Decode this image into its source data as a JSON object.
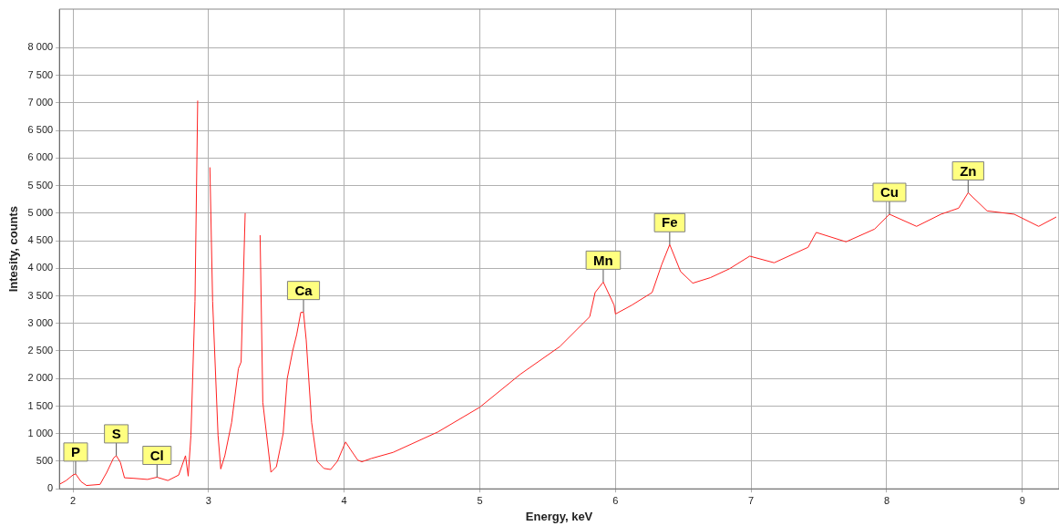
{
  "chart_data": {
    "type": "line",
    "xlabel": "Energy, keV",
    "ylabel": "Intesity, counts",
    "xlim": [
      1.9,
      9.27
    ],
    "xticks": [
      2,
      3,
      4,
      5,
      6,
      7,
      8,
      9
    ],
    "ylim": [
      0,
      8700
    ],
    "yticks": [
      0,
      500,
      {
        "value": 1000,
        "label": "1 000"
      },
      {
        "value": 1500,
        "label": "1 500"
      },
      {
        "value": 2000,
        "label": "2 000"
      },
      {
        "value": 2500,
        "label": "2 500"
      },
      {
        "value": 3000,
        "label": "3 000"
      },
      {
        "value": 3500,
        "label": "3 500"
      },
      {
        "value": 4000,
        "label": "4 000"
      },
      {
        "value": 4500,
        "label": "4 500"
      },
      {
        "value": 5000,
        "label": "5 000"
      },
      {
        "value": 5500,
        "label": "5 500"
      },
      {
        "value": 6000,
        "label": "6 000"
      },
      {
        "value": 6500,
        "label": "6 500"
      },
      {
        "value": 7000,
        "label": "7 000"
      },
      {
        "value": 7500,
        "label": "7 500"
      },
      {
        "value": 8000,
        "label": "8 000"
      }
    ],
    "grid": true,
    "legend": false,
    "marker": "none",
    "line_style": "solid",
    "series": [
      {
        "color": "#ff2020",
        "x": [
          1.9,
          1.95,
          2.0,
          2.02,
          2.06,
          2.1,
          2.2,
          2.25,
          2.3,
          2.32,
          2.35,
          2.38,
          2.45,
          2.55,
          2.62,
          2.7,
          2.78,
          2.83,
          2.85,
          2.87,
          2.9,
          2.92,
          2.94,
          2.965,
          2.99,
          3.01,
          3.03,
          3.07,
          3.09,
          3.12,
          3.17,
          3.22,
          3.24,
          3.27,
          3.3,
          3.33,
          3.36,
          3.38,
          3.4,
          3.46,
          3.5,
          3.55,
          3.58,
          3.62,
          3.65,
          3.68,
          3.7,
          3.72,
          3.76,
          3.8,
          3.85,
          3.9,
          3.95,
          4.01,
          4.05,
          4.1,
          4.13,
          4.2,
          4.36,
          4.69,
          5.0,
          5.3,
          5.59,
          5.81,
          5.85,
          5.91,
          5.99,
          6.0,
          6.12,
          6.27,
          6.34,
          6.4,
          6.48,
          6.57,
          6.7,
          6.84,
          6.99,
          7.17,
          7.42,
          7.48,
          7.7,
          7.91,
          8.02,
          8.22,
          8.4,
          8.53,
          8.6,
          8.74,
          8.94,
          9.12,
          9.25
        ],
        "values": [
          80,
          150,
          250,
          270,
          130,
          60,
          80,
          300,
          560,
          600,
          480,
          200,
          190,
          170,
          210,
          150,
          250,
          600,
          230,
          970,
          3400,
          7040,
          null,
          null,
          null,
          5830,
          3400,
          970,
          360,
          600,
          1200,
          2180,
          2300,
          5000,
          null,
          null,
          null,
          4600,
          1570,
          300,
          400,
          1000,
          2000,
          2500,
          2800,
          3200,
          3200,
          2700,
          1200,
          500,
          370,
          350,
          500,
          850,
          700,
          520,
          490,
          550,
          660,
          1030,
          1480,
          2080,
          2580,
          3120,
          3560,
          3750,
          3330,
          3170,
          3330,
          3560,
          4060,
          4430,
          3940,
          3730,
          3830,
          3990,
          4220,
          4100,
          4380,
          4650,
          4480,
          4710,
          4980,
          4760,
          4980,
          5090,
          5370,
          5040,
          4980,
          4760,
          4930
        ]
      }
    ],
    "annotations": [
      {
        "text": "P",
        "x": 2.02,
        "y": 270
      },
      {
        "text": "S",
        "x": 2.32,
        "y": 600
      },
      {
        "text": "Cl",
        "x": 2.62,
        "y": 210
      },
      {
        "text": "Ca",
        "x": 3.7,
        "y": 3200
      },
      {
        "text": "Mn",
        "x": 5.91,
        "y": 3750
      },
      {
        "text": "Fe",
        "x": 6.4,
        "y": 4430
      },
      {
        "text": "Cu",
        "x": 8.02,
        "y": 4980
      },
      {
        "text": "Zn",
        "x": 8.6,
        "y": 5370
      }
    ]
  }
}
